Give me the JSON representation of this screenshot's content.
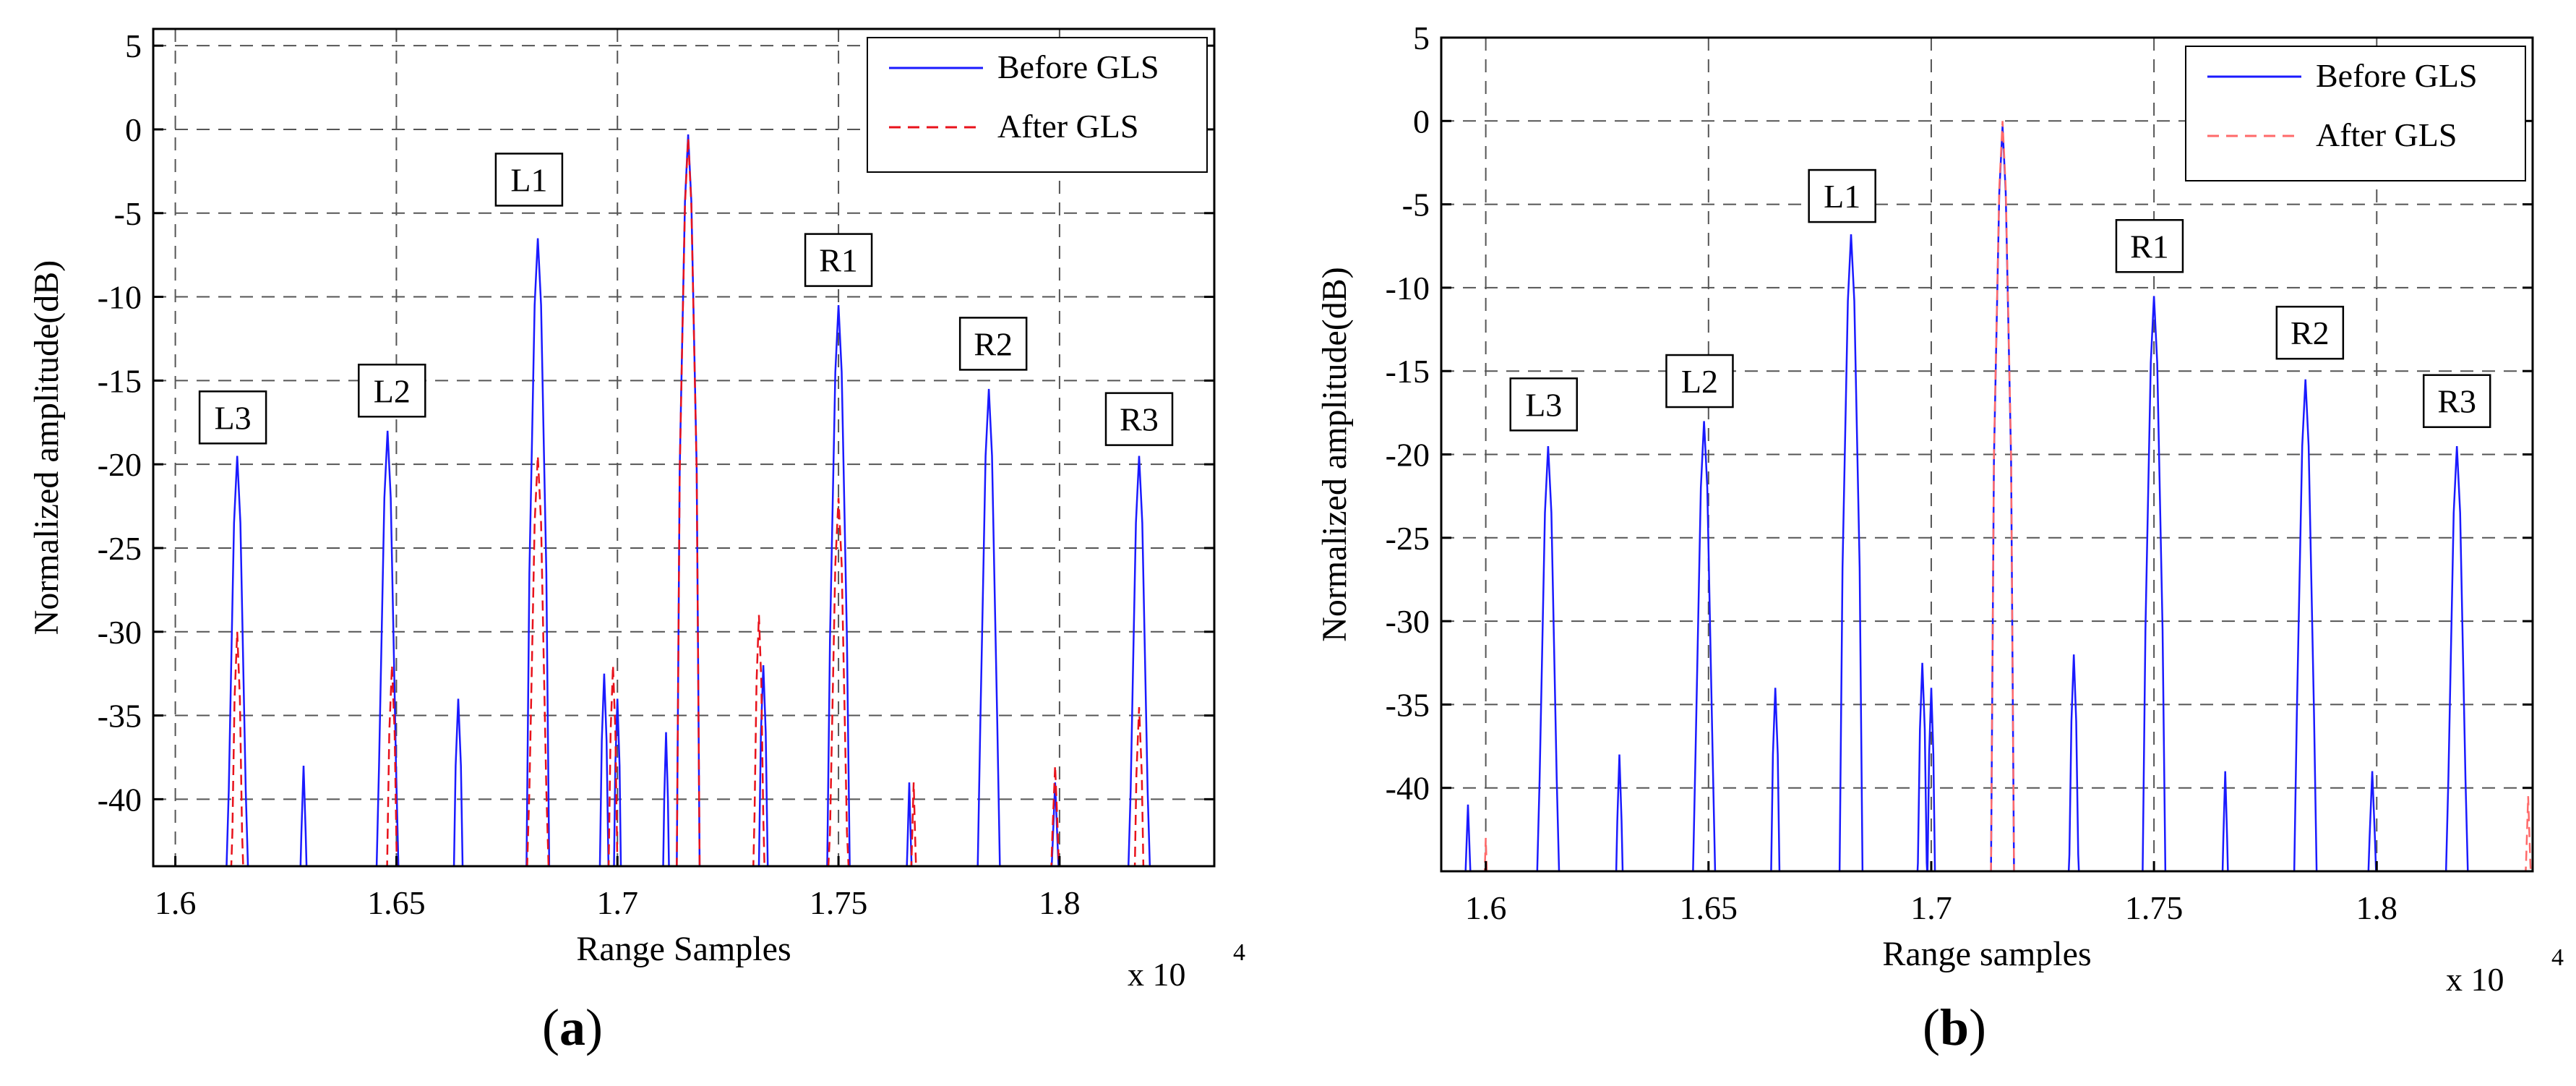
{
  "chart_data": [
    {
      "type": "line",
      "panel": "a",
      "caption": "a",
      "xlabel": "Range Samples",
      "ylabel": "Normalized amplitude(dB)",
      "x_multiplier_label": "x 10",
      "x_multiplier_exponent": "4",
      "xlim": [
        1.595,
        1.835
      ],
      "ylim": [
        -44,
        6
      ],
      "xticks": [
        1.6,
        1.65,
        1.7,
        1.75,
        1.8
      ],
      "xtick_labels": [
        "1.6",
        "1.65",
        "1.7",
        "1.75",
        "1.8"
      ],
      "yticks": [
        5,
        0,
        -5,
        -10,
        -15,
        -20,
        -25,
        -30,
        -35,
        -40
      ],
      "ytick_labels": [
        "5",
        "0",
        "-5",
        "-10",
        "-15",
        "-20",
        "-25",
        "-30",
        "-35",
        "-40"
      ],
      "grid": true,
      "legend_position": "top-right",
      "series": [
        {
          "name": "Before GLS",
          "color": "#1a1aff",
          "style": "solid",
          "peaks": [
            {
              "x": 1.614,
              "y": -19.5,
              "w": 0.0012
            },
            {
              "x": 1.629,
              "y": -38,
              "w": 0.0008
            },
            {
              "x": 1.648,
              "y": -18,
              "w": 0.0012
            },
            {
              "x": 1.664,
              "y": -34,
              "w": 0.001
            },
            {
              "x": 1.682,
              "y": -6.5,
              "w": 0.0012
            },
            {
              "x": 1.697,
              "y": -32.5,
              "w": 0.0009
            },
            {
              "x": 1.7,
              "y": -34,
              "w": 0.0008
            },
            {
              "x": 1.711,
              "y": -36,
              "w": 0.0007
            },
            {
              "x": 1.716,
              "y": -0.3,
              "w": 0.0012
            },
            {
              "x": 1.733,
              "y": -32,
              "w": 0.0009
            },
            {
              "x": 1.75,
              "y": -10.5,
              "w": 0.0012
            },
            {
              "x": 1.766,
              "y": -39,
              "w": 0.0007
            },
            {
              "x": 1.784,
              "y": -15.5,
              "w": 0.0012
            },
            {
              "x": 1.799,
              "y": -39,
              "w": 0.001
            },
            {
              "x": 1.818,
              "y": -19.5,
              "w": 0.0012
            }
          ]
        },
        {
          "name": "After GLS",
          "color": "#e8121b",
          "style": "dashed",
          "peaks": [
            {
              "x": 1.614,
              "y": -30,
              "w": 0.001
            },
            {
              "x": 1.649,
              "y": -32,
              "w": 0.001
            },
            {
              "x": 1.682,
              "y": -19.5,
              "w": 0.0012
            },
            {
              "x": 1.699,
              "y": -32,
              "w": 0.0009
            },
            {
              "x": 1.716,
              "y": -0.5,
              "w": 0.0012
            },
            {
              "x": 1.732,
              "y": -29,
              "w": 0.0009
            },
            {
              "x": 1.75,
              "y": -22,
              "w": 0.0012
            },
            {
              "x": 1.767,
              "y": -39,
              "w": 0.0007
            },
            {
              "x": 1.799,
              "y": -38,
              "w": 0.001
            },
            {
              "x": 1.818,
              "y": -34.5,
              "w": 0.001
            }
          ]
        }
      ],
      "annotations": [
        {
          "text": "L3",
          "x": 1.613,
          "y": -17.2
        },
        {
          "text": "L2",
          "x": 1.649,
          "y": -15.6
        },
        {
          "text": "L1",
          "x": 1.68,
          "y": -3.0
        },
        {
          "text": "R1",
          "x": 1.75,
          "y": -7.8
        },
        {
          "text": "R2",
          "x": 1.785,
          "y": -12.8
        },
        {
          "text": "R3",
          "x": 1.818,
          "y": -17.3
        }
      ]
    },
    {
      "type": "line",
      "panel": "b",
      "caption": "b",
      "xlabel": "Range samples",
      "ylabel": "Normalized amplitude(dB)",
      "x_multiplier_label": "x 10",
      "x_multiplier_exponent": "4",
      "xlim": [
        1.59,
        1.835
      ],
      "ylim": [
        -45,
        5
      ],
      "xticks": [
        1.6,
        1.65,
        1.7,
        1.75,
        1.8
      ],
      "xtick_labels": [
        "1.6",
        "1.65",
        "1.7",
        "1.75",
        "1.8"
      ],
      "yticks": [
        5,
        0,
        -5,
        -10,
        -15,
        -20,
        -25,
        -30,
        -35,
        -40
      ],
      "ytick_labels": [
        "5",
        "0",
        "-5",
        "-10",
        "-15",
        "-20",
        "-25",
        "-30",
        "-35",
        "-40"
      ],
      "grid": true,
      "legend_position": "top-right",
      "series": [
        {
          "name": "Before GLS",
          "color": "#1a1aff",
          "style": "solid",
          "peaks": [
            {
              "x": 1.596,
              "y": -41,
              "w": 0.0009
            },
            {
              "x": 1.614,
              "y": -19.5,
              "w": 0.0012
            },
            {
              "x": 1.63,
              "y": -38,
              "w": 0.0008
            },
            {
              "x": 1.649,
              "y": -18,
              "w": 0.0012
            },
            {
              "x": 1.665,
              "y": -34,
              "w": 0.0009
            },
            {
              "x": 1.682,
              "y": -6.8,
              "w": 0.0012
            },
            {
              "x": 1.698,
              "y": -32.5,
              "w": 0.0009
            },
            {
              "x": 1.7,
              "y": -34,
              "w": 0.0008
            },
            {
              "x": 1.716,
              "y": -0.3,
              "w": 0.0012
            },
            {
              "x": 1.732,
              "y": -32,
              "w": 0.0009
            },
            {
              "x": 1.75,
              "y": -10.5,
              "w": 0.0012
            },
            {
              "x": 1.766,
              "y": -39,
              "w": 0.0007
            },
            {
              "x": 1.784,
              "y": -15.5,
              "w": 0.0012
            },
            {
              "x": 1.799,
              "y": -39,
              "w": 0.001
            },
            {
              "x": 1.818,
              "y": -19.5,
              "w": 0.0012
            }
          ]
        },
        {
          "name": "After GLS",
          "color": "#ff6a6a",
          "style": "dashed",
          "peaks": [
            {
              "x": 1.716,
              "y": 0,
              "w": 0.0012
            },
            {
              "x": 1.6,
              "y": -43,
              "w": 0.0008
            },
            {
              "x": 1.834,
              "y": -40.5,
              "w": 0.0008
            }
          ]
        }
      ],
      "annotations": [
        {
          "text": "L3",
          "x": 1.613,
          "y": -17.0
        },
        {
          "text": "L2",
          "x": 1.648,
          "y": -15.6
        },
        {
          "text": "L1",
          "x": 1.68,
          "y": -4.5
        },
        {
          "text": "R1",
          "x": 1.749,
          "y": -7.5
        },
        {
          "text": "R2",
          "x": 1.785,
          "y": -12.7
        },
        {
          "text": "R3",
          "x": 1.818,
          "y": -16.8
        }
      ]
    }
  ]
}
